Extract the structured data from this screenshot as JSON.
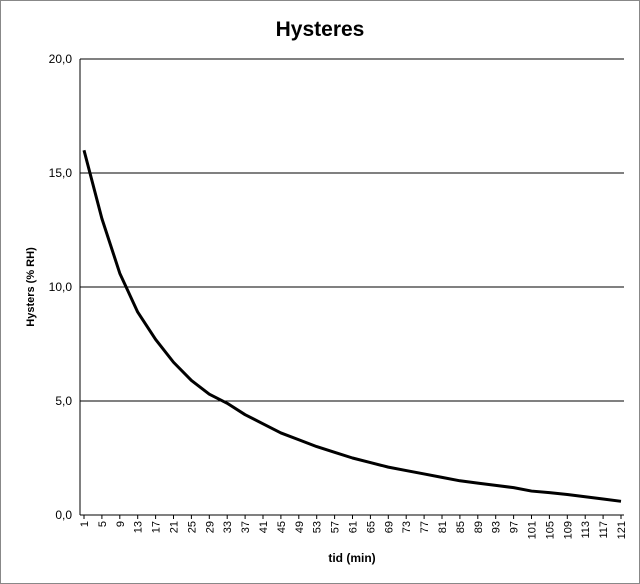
{
  "chart_data": {
    "type": "line",
    "title": "Hysteres",
    "x_label": "tid (min)",
    "y_label": "Hysters  (% RH)",
    "x": [
      1,
      5,
      9,
      13,
      17,
      21,
      25,
      29,
      33,
      37,
      41,
      45,
      49,
      53,
      57,
      61,
      65,
      69,
      73,
      77,
      81,
      85,
      89,
      93,
      97,
      101,
      105,
      109,
      113,
      117,
      121
    ],
    "series": [
      {
        "color": "#000000",
        "values": [
          16.0,
          13.0,
          10.6,
          8.9,
          7.7,
          6.7,
          5.9,
          5.3,
          4.9,
          4.4,
          4.0,
          3.6,
          3.3,
          3.0,
          2.75,
          2.5,
          2.3,
          2.1,
          1.95,
          1.8,
          1.65,
          1.5,
          1.4,
          1.3,
          1.2,
          1.05,
          0.98,
          0.9,
          0.8,
          0.7,
          0.6
        ]
      }
    ],
    "xlim": [
      1,
      121
    ],
    "xticks": [
      1,
      5,
      9,
      13,
      17,
      21,
      25,
      29,
      33,
      37,
      41,
      45,
      49,
      53,
      57,
      61,
      65,
      69,
      73,
      77,
      81,
      85,
      89,
      93,
      97,
      101,
      105,
      109,
      113,
      117,
      121
    ],
    "ylim": [
      0,
      20
    ],
    "yticks": [
      {
        "value": 0,
        "label": "0,0"
      },
      {
        "value": 5,
        "label": "5,0"
      },
      {
        "value": 10,
        "label": "10,0"
      },
      {
        "value": 15,
        "label": "15,0"
      },
      {
        "value": 20,
        "label": "20,0"
      }
    ],
    "grid": true
  }
}
